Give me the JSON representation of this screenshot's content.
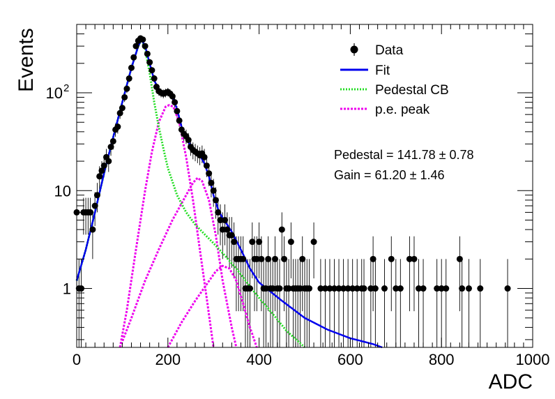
{
  "chart_data": {
    "type": "histogram_fit",
    "xlabel": "ADC",
    "ylabel": "Events",
    "xlim": [
      0,
      1000
    ],
    "ylim": [
      0.25,
      500
    ],
    "ylog": true,
    "grid": false,
    "legend_position": "top-right",
    "x_ticks": [
      0,
      200,
      400,
      600,
      800,
      1000
    ],
    "y_ticks": [
      {
        "value": 1,
        "label": "1"
      },
      {
        "value": 10,
        "label": "10"
      },
      {
        "value": 100,
        "label": "10",
        "exponent": "2"
      }
    ],
    "legend": [
      {
        "label": "Data",
        "color": "#000000",
        "style": "marker"
      },
      {
        "label": "Fit",
        "color": "#0000ee",
        "style": "solid"
      },
      {
        "label": "Pedestal CB",
        "color": "#22dd22",
        "style": "dotted"
      },
      {
        "label": "p.e. peak",
        "color": "#ee00ee",
        "style": "dotted"
      }
    ],
    "annotations": [
      {
        "name": "pedestal",
        "text": "Pedestal = 141.78 ± 0.78"
      },
      {
        "name": "gain",
        "text": "Gain = 61.20 ± 1.46"
      }
    ],
    "data_points": [
      {
        "x": 0,
        "y": 6
      },
      {
        "x": 5,
        "y": 1
      },
      {
        "x": 10,
        "y": 1
      },
      {
        "x": 15,
        "y": 6
      },
      {
        "x": 20,
        "y": 6
      },
      {
        "x": 25,
        "y": 6
      },
      {
        "x": 30,
        "y": 6
      },
      {
        "x": 35,
        "y": 4
      },
      {
        "x": 40,
        "y": 7
      },
      {
        "x": 45,
        "y": 9
      },
      {
        "x": 50,
        "y": 14
      },
      {
        "x": 55,
        "y": 16
      },
      {
        "x": 60,
        "y": 18
      },
      {
        "x": 65,
        "y": 22
      },
      {
        "x": 70,
        "y": 20
      },
      {
        "x": 75,
        "y": 28
      },
      {
        "x": 80,
        "y": 32
      },
      {
        "x": 85,
        "y": 42
      },
      {
        "x": 90,
        "y": 45
      },
      {
        "x": 95,
        "y": 62
      },
      {
        "x": 100,
        "y": 70
      },
      {
        "x": 105,
        "y": 90
      },
      {
        "x": 110,
        "y": 110
      },
      {
        "x": 115,
        "y": 140
      },
      {
        "x": 120,
        "y": 180
      },
      {
        "x": 125,
        "y": 230
      },
      {
        "x": 130,
        "y": 300
      },
      {
        "x": 135,
        "y": 340
      },
      {
        "x": 140,
        "y": 360
      },
      {
        "x": 145,
        "y": 350
      },
      {
        "x": 150,
        "y": 300
      },
      {
        "x": 155,
        "y": 250
      },
      {
        "x": 160,
        "y": 205
      },
      {
        "x": 165,
        "y": 170
      },
      {
        "x": 170,
        "y": 140
      },
      {
        "x": 175,
        "y": 115
      },
      {
        "x": 180,
        "y": 104
      },
      {
        "x": 185,
        "y": 100
      },
      {
        "x": 190,
        "y": 98
      },
      {
        "x": 195,
        "y": 100
      },
      {
        "x": 200,
        "y": 102
      },
      {
        "x": 205,
        "y": 98
      },
      {
        "x": 210,
        "y": 92
      },
      {
        "x": 215,
        "y": 80
      },
      {
        "x": 220,
        "y": 65
      },
      {
        "x": 225,
        "y": 52
      },
      {
        "x": 230,
        "y": 42
      },
      {
        "x": 235,
        "y": 38
      },
      {
        "x": 240,
        "y": 36
      },
      {
        "x": 245,
        "y": 33
      },
      {
        "x": 250,
        "y": 28
      },
      {
        "x": 255,
        "y": 26
      },
      {
        "x": 260,
        "y": 25
      },
      {
        "x": 265,
        "y": 24
      },
      {
        "x": 270,
        "y": 23
      },
      {
        "x": 275,
        "y": 24
      },
      {
        "x": 280,
        "y": 22
      },
      {
        "x": 285,
        "y": 18
      },
      {
        "x": 290,
        "y": 15
      },
      {
        "x": 295,
        "y": 12
      },
      {
        "x": 300,
        "y": 10
      },
      {
        "x": 305,
        "y": 8
      },
      {
        "x": 310,
        "y": 6
      },
      {
        "x": 315,
        "y": 5
      },
      {
        "x": 320,
        "y": 4
      },
      {
        "x": 325,
        "y": 5
      },
      {
        "x": 330,
        "y": 4
      },
      {
        "x": 335,
        "y": 3.5
      },
      {
        "x": 340,
        "y": 3.5
      },
      {
        "x": 345,
        "y": 3
      },
      {
        "x": 350,
        "y": 2
      },
      {
        "x": 355,
        "y": 2
      },
      {
        "x": 360,
        "y": 2
      },
      {
        "x": 365,
        "y": 2
      },
      {
        "x": 370,
        "y": 1
      },
      {
        "x": 375,
        "y": 1
      },
      {
        "x": 380,
        "y": 1
      },
      {
        "x": 385,
        "y": 3
      },
      {
        "x": 390,
        "y": 2
      },
      {
        "x": 395,
        "y": 2
      },
      {
        "x": 400,
        "y": 3
      },
      {
        "x": 405,
        "y": 2
      },
      {
        "x": 410,
        "y": 1
      },
      {
        "x": 415,
        "y": 1
      },
      {
        "x": 420,
        "y": 2
      },
      {
        "x": 425,
        "y": 1
      },
      {
        "x": 430,
        "y": 1
      },
      {
        "x": 435,
        "y": 2
      },
      {
        "x": 440,
        "y": 1
      },
      {
        "x": 445,
        "y": 1
      },
      {
        "x": 450,
        "y": 4
      },
      {
        "x": 455,
        "y": 2
      },
      {
        "x": 460,
        "y": 1
      },
      {
        "x": 465,
        "y": 1
      },
      {
        "x": 470,
        "y": 3
      },
      {
        "x": 475,
        "y": 1
      },
      {
        "x": 480,
        "y": 1
      },
      {
        "x": 485,
        "y": 1
      },
      {
        "x": 490,
        "y": 1
      },
      {
        "x": 495,
        "y": 2
      },
      {
        "x": 500,
        "y": 1
      },
      {
        "x": 505,
        "y": 1
      },
      {
        "x": 510,
        "y": 1
      },
      {
        "x": 520,
        "y": 3
      },
      {
        "x": 535,
        "y": 1
      },
      {
        "x": 545,
        "y": 1
      },
      {
        "x": 555,
        "y": 1
      },
      {
        "x": 565,
        "y": 1
      },
      {
        "x": 575,
        "y": 1
      },
      {
        "x": 585,
        "y": 1
      },
      {
        "x": 595,
        "y": 1
      },
      {
        "x": 605,
        "y": 1
      },
      {
        "x": 615,
        "y": 1
      },
      {
        "x": 625,
        "y": 1
      },
      {
        "x": 630,
        "y": 1
      },
      {
        "x": 645,
        "y": 1
      },
      {
        "x": 650,
        "y": 2
      },
      {
        "x": 655,
        "y": 1
      },
      {
        "x": 675,
        "y": 1
      },
      {
        "x": 690,
        "y": 2
      },
      {
        "x": 700,
        "y": 1
      },
      {
        "x": 710,
        "y": 1
      },
      {
        "x": 730,
        "y": 2
      },
      {
        "x": 740,
        "y": 2
      },
      {
        "x": 750,
        "y": 1
      },
      {
        "x": 760,
        "y": 1
      },
      {
        "x": 790,
        "y": 1
      },
      {
        "x": 800,
        "y": 1
      },
      {
        "x": 810,
        "y": 1
      },
      {
        "x": 840,
        "y": 2
      },
      {
        "x": 845,
        "y": 1
      },
      {
        "x": 860,
        "y": 1
      },
      {
        "x": 885,
        "y": 1
      },
      {
        "x": 945,
        "y": 1
      }
    ],
    "fit": [
      {
        "x": 0,
        "y": 1.2
      },
      {
        "x": 20,
        "y": 2.5
      },
      {
        "x": 40,
        "y": 6
      },
      {
        "x": 60,
        "y": 15
      },
      {
        "x": 80,
        "y": 35
      },
      {
        "x": 100,
        "y": 80
      },
      {
        "x": 120,
        "y": 180
      },
      {
        "x": 135,
        "y": 300
      },
      {
        "x": 142,
        "y": 350
      },
      {
        "x": 150,
        "y": 300
      },
      {
        "x": 160,
        "y": 200
      },
      {
        "x": 170,
        "y": 135
      },
      {
        "x": 180,
        "y": 105
      },
      {
        "x": 190,
        "y": 98
      },
      {
        "x": 200,
        "y": 99
      },
      {
        "x": 210,
        "y": 92
      },
      {
        "x": 220,
        "y": 68
      },
      {
        "x": 230,
        "y": 45
      },
      {
        "x": 240,
        "y": 34
      },
      {
        "x": 250,
        "y": 29
      },
      {
        "x": 260,
        "y": 26
      },
      {
        "x": 270,
        "y": 23
      },
      {
        "x": 280,
        "y": 19
      },
      {
        "x": 290,
        "y": 14
      },
      {
        "x": 300,
        "y": 9
      },
      {
        "x": 310,
        "y": 6.5
      },
      {
        "x": 320,
        "y": 5.2
      },
      {
        "x": 330,
        "y": 4.5
      },
      {
        "x": 340,
        "y": 3.8
      },
      {
        "x": 360,
        "y": 2.5
      },
      {
        "x": 380,
        "y": 1.6
      },
      {
        "x": 400,
        "y": 1.15
      },
      {
        "x": 450,
        "y": 0.75
      },
      {
        "x": 500,
        "y": 0.5
      },
      {
        "x": 550,
        "y": 0.38
      },
      {
        "x": 600,
        "y": 0.31
      },
      {
        "x": 650,
        "y": 0.27
      },
      {
        "x": 670,
        "y": 0.25
      }
    ],
    "pedestal_cb": [
      {
        "x": 0,
        "y": 1.2
      },
      {
        "x": 20,
        "y": 2.5
      },
      {
        "x": 40,
        "y": 6
      },
      {
        "x": 60,
        "y": 15
      },
      {
        "x": 80,
        "y": 35
      },
      {
        "x": 100,
        "y": 80
      },
      {
        "x": 120,
        "y": 180
      },
      {
        "x": 135,
        "y": 300
      },
      {
        "x": 142,
        "y": 350
      },
      {
        "x": 150,
        "y": 280
      },
      {
        "x": 160,
        "y": 160
      },
      {
        "x": 170,
        "y": 80
      },
      {
        "x": 180,
        "y": 45
      },
      {
        "x": 190,
        "y": 27
      },
      {
        "x": 200,
        "y": 17
      },
      {
        "x": 220,
        "y": 9
      },
      {
        "x": 240,
        "y": 6
      },
      {
        "x": 260,
        "y": 4.5
      },
      {
        "x": 280,
        "y": 3.6
      },
      {
        "x": 300,
        "y": 2.9
      },
      {
        "x": 320,
        "y": 2.3
      },
      {
        "x": 350,
        "y": 1.6
      },
      {
        "x": 380,
        "y": 1.05
      },
      {
        "x": 400,
        "y": 0.8
      },
      {
        "x": 430,
        "y": 0.55
      },
      {
        "x": 460,
        "y": 0.37
      },
      {
        "x": 500,
        "y": 0.25
      }
    ],
    "pe_peaks": [
      [
        {
          "x": 95,
          "y": 0.25
        },
        {
          "x": 110,
          "y": 0.6
        },
        {
          "x": 130,
          "y": 2.5
        },
        {
          "x": 150,
          "y": 10
        },
        {
          "x": 165,
          "y": 25
        },
        {
          "x": 180,
          "y": 50
        },
        {
          "x": 195,
          "y": 72
        },
        {
          "x": 203,
          "y": 75
        },
        {
          "x": 212,
          "y": 72
        },
        {
          "x": 225,
          "y": 50
        },
        {
          "x": 240,
          "y": 22
        },
        {
          "x": 255,
          "y": 8
        },
        {
          "x": 270,
          "y": 2.5
        },
        {
          "x": 285,
          "y": 0.8
        },
        {
          "x": 300,
          "y": 0.25
        }
      ],
      [
        {
          "x": 95,
          "y": 0.25
        },
        {
          "x": 120,
          "y": 0.5
        },
        {
          "x": 150,
          "y": 1.2
        },
        {
          "x": 180,
          "y": 2.5
        },
        {
          "x": 210,
          "y": 5
        },
        {
          "x": 240,
          "y": 9
        },
        {
          "x": 255,
          "y": 12
        },
        {
          "x": 265,
          "y": 13.5
        },
        {
          "x": 275,
          "y": 12.5
        },
        {
          "x": 290,
          "y": 8
        },
        {
          "x": 305,
          "y": 3.5
        },
        {
          "x": 320,
          "y": 1.2
        },
        {
          "x": 340,
          "y": 0.4
        },
        {
          "x": 350,
          "y": 0.25
        }
      ],
      [
        {
          "x": 200,
          "y": 0.25
        },
        {
          "x": 230,
          "y": 0.45
        },
        {
          "x": 260,
          "y": 0.75
        },
        {
          "x": 285,
          "y": 1.1
        },
        {
          "x": 305,
          "y": 1.5
        },
        {
          "x": 320,
          "y": 1.7
        },
        {
          "x": 335,
          "y": 1.6
        },
        {
          "x": 350,
          "y": 1.2
        },
        {
          "x": 365,
          "y": 0.7
        },
        {
          "x": 380,
          "y": 0.4
        },
        {
          "x": 395,
          "y": 0.25
        }
      ]
    ],
    "colors": {
      "data": "#000000",
      "fit": "#0000ee",
      "pedestal": "#22dd22",
      "pe": "#ee00ee"
    }
  }
}
